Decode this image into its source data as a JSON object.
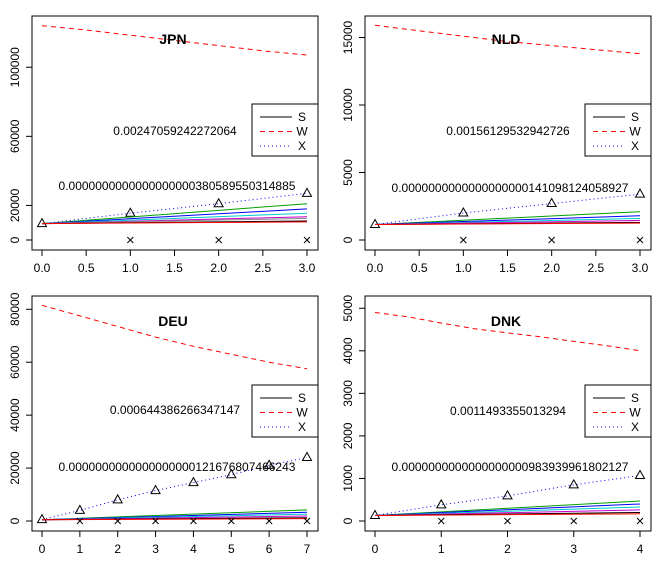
{
  "chart_data": [
    {
      "type": "line",
      "title": "JPN",
      "xlim": [
        0,
        3
      ],
      "ylim": [
        0,
        125000
      ],
      "x_ticks": [
        0,
        0.5,
        1,
        1.5,
        2,
        2.5,
        3
      ],
      "x_tick_labels": [
        "0.0",
        "0.5",
        "1.0",
        "1.5",
        "2.0",
        "2.5",
        "3.0"
      ],
      "y_ticks": [
        0,
        20000,
        60000,
        100000
      ],
      "y_tick_labels": [
        "0",
        "20000",
        "60000",
        "100000"
      ],
      "annotations": [
        "0.00247059242272064",
        "0.0000000000000000000380589550314885"
      ],
      "legend": {
        "placement": "right",
        "entries": [
          "S",
          "W",
          "X"
        ]
      },
      "series": [
        {
          "name": "W",
          "color": "#ff0000",
          "style": "dashed",
          "x": [
            0,
            0.5,
            1,
            1.5,
            2,
            2.5,
            3
          ],
          "values": [
            124000,
            121500,
            118500,
            115500,
            112500,
            109500,
            107000
          ]
        },
        {
          "name": "X",
          "color": "#0000ff",
          "style": "dotted",
          "marker": "triangle",
          "x": [
            0,
            1,
            2,
            3
          ],
          "values": [
            9500,
            15500,
            21000,
            27000
          ]
        },
        {
          "color": "#00a000",
          "style": "solid",
          "x": [
            0,
            3
          ],
          "values": [
            9500,
            21000
          ]
        },
        {
          "color": "#0000ff",
          "style": "solid",
          "x": [
            0,
            3
          ],
          "values": [
            9500,
            18000
          ]
        },
        {
          "color": "#00cccc",
          "style": "solid",
          "x": [
            0,
            3
          ],
          "values": [
            9500,
            15500
          ]
        },
        {
          "color": "#cc00cc",
          "style": "solid",
          "x": [
            0,
            3
          ],
          "values": [
            9500,
            13500
          ]
        },
        {
          "color": "#888888",
          "style": "solid",
          "x": [
            0,
            3
          ],
          "values": [
            9500,
            12500
          ]
        },
        {
          "color": "#000000",
          "style": "solid",
          "x": [
            0,
            3
          ],
          "values": [
            9500,
            11000
          ]
        },
        {
          "color": "#ff0000",
          "style": "solid",
          "x": [
            0,
            3
          ],
          "values": [
            9500,
            10500
          ]
        },
        {
          "marker": "cross",
          "x": [
            1,
            2,
            3
          ],
          "values": [
            0,
            0,
            0
          ]
        }
      ]
    },
    {
      "type": "line",
      "title": "NLD",
      "xlim": [
        0,
        3
      ],
      "ylim": [
        0,
        16000
      ],
      "x_ticks": [
        0,
        0.5,
        1,
        1.5,
        2,
        2.5,
        3
      ],
      "x_tick_labels": [
        "0.0",
        "0.5",
        "1.0",
        "1.5",
        "2.0",
        "2.5",
        "3.0"
      ],
      "y_ticks": [
        0,
        5000,
        10000,
        15000
      ],
      "y_tick_labels": [
        "0",
        "5000",
        "10000",
        "15000"
      ],
      "annotations": [
        "0.00156129532942726",
        "0.0000000000000000000141098124058927"
      ],
      "legend": {
        "placement": "right",
        "entries": [
          "S",
          "W",
          "X"
        ]
      },
      "series": [
        {
          "name": "W",
          "color": "#ff0000",
          "style": "dashed",
          "x": [
            0,
            0.5,
            1,
            1.5,
            2,
            2.5,
            3
          ],
          "values": [
            15900,
            15500,
            15100,
            14700,
            14400,
            14100,
            13800
          ]
        },
        {
          "name": "X",
          "color": "#0000ff",
          "style": "dotted",
          "marker": "triangle",
          "x": [
            0,
            1,
            2,
            3
          ],
          "values": [
            1150,
            2000,
            2700,
            3400
          ]
        },
        {
          "color": "#00a000",
          "style": "solid",
          "x": [
            0,
            3
          ],
          "values": [
            1150,
            2100
          ]
        },
        {
          "color": "#0000ff",
          "style": "solid",
          "x": [
            0,
            3
          ],
          "values": [
            1150,
            1800
          ]
        },
        {
          "color": "#00cccc",
          "style": "solid",
          "x": [
            0,
            3
          ],
          "values": [
            1150,
            1600
          ]
        },
        {
          "color": "#cc00cc",
          "style": "solid",
          "x": [
            0,
            3
          ],
          "values": [
            1150,
            1450
          ]
        },
        {
          "color": "#000000",
          "style": "solid",
          "x": [
            0,
            3
          ],
          "values": [
            1150,
            1300
          ]
        },
        {
          "color": "#ff0000",
          "style": "solid",
          "x": [
            0,
            3
          ],
          "values": [
            1150,
            1250
          ]
        },
        {
          "marker": "cross",
          "x": [
            1,
            2,
            3
          ],
          "values": [
            0,
            0,
            0
          ]
        }
      ]
    },
    {
      "type": "line",
      "title": "DEU",
      "xlim": [
        0,
        7
      ],
      "ylim": [
        0,
        82000
      ],
      "x_ticks": [
        0,
        1,
        2,
        3,
        4,
        5,
        6,
        7
      ],
      "x_tick_labels": [
        "0",
        "1",
        "2",
        "3",
        "4",
        "5",
        "6",
        "7"
      ],
      "y_ticks": [
        0,
        20000,
        40000,
        60000,
        80000
      ],
      "y_tick_labels": [
        "0",
        "20000",
        "40000",
        "60000",
        "80000"
      ],
      "annotations": [
        "0.000644386266347147",
        "0.0000000000000000000121676807466243"
      ],
      "legend": {
        "placement": "right",
        "entries": [
          "S",
          "W",
          "X"
        ]
      },
      "series": [
        {
          "name": "W",
          "color": "#ff0000",
          "style": "dashed",
          "x": [
            0,
            1,
            2,
            3,
            4,
            5,
            6,
            7
          ],
          "values": [
            81500,
            77500,
            73500,
            69500,
            66000,
            63000,
            60000,
            57500
          ]
        },
        {
          "name": "X",
          "color": "#0000ff",
          "style": "dotted",
          "marker": "triangle",
          "x": [
            0,
            1,
            2,
            3,
            4,
            5,
            6,
            7
          ],
          "values": [
            500,
            4000,
            8000,
            11500,
            14500,
            17500,
            21000,
            24000
          ]
        },
        {
          "color": "#00a000",
          "style": "solid",
          "x": [
            0,
            7
          ],
          "values": [
            500,
            4200
          ]
        },
        {
          "color": "#0000ff",
          "style": "solid",
          "x": [
            0,
            7
          ],
          "values": [
            500,
            3300
          ]
        },
        {
          "color": "#00cccc",
          "style": "solid",
          "x": [
            0,
            7
          ],
          "values": [
            500,
            2600
          ]
        },
        {
          "color": "#cc00cc",
          "style": "solid",
          "x": [
            0,
            7
          ],
          "values": [
            500,
            1900
          ]
        },
        {
          "color": "#000000",
          "style": "solid",
          "x": [
            0,
            7
          ],
          "values": [
            500,
            1200
          ]
        },
        {
          "color": "#ff0000",
          "style": "solid",
          "x": [
            0,
            7
          ],
          "values": [
            500,
            900
          ]
        },
        {
          "marker": "cross",
          "x": [
            1,
            2,
            3,
            4,
            5,
            6,
            7
          ],
          "values": [
            0,
            0,
            0,
            0,
            0,
            0,
            0
          ]
        }
      ]
    },
    {
      "type": "line",
      "title": "DNK",
      "xlim": [
        0,
        4
      ],
      "ylim": [
        0,
        5100
      ],
      "x_ticks": [
        0,
        1,
        2,
        3,
        4
      ],
      "x_tick_labels": [
        "0",
        "1",
        "2",
        "3",
        "4"
      ],
      "y_ticks": [
        0,
        1000,
        2000,
        3000,
        4000,
        5000
      ],
      "y_tick_labels": [
        "0",
        "1000",
        "2000",
        "3000",
        "4000",
        "5000"
      ],
      "annotations": [
        "0.0011493355013294",
        "0.0000000000000000000983939961802127"
      ],
      "legend": {
        "placement": "right",
        "entries": [
          "S",
          "W",
          "X"
        ]
      },
      "series": [
        {
          "name": "W",
          "color": "#ff0000",
          "style": "dashed",
          "x": [
            0,
            0.5,
            1,
            1.5,
            2,
            2.5,
            3,
            3.5,
            4
          ],
          "values": [
            4900,
            4800,
            4650,
            4520,
            4420,
            4330,
            4220,
            4120,
            4000
          ]
        },
        {
          "name": "X",
          "color": "#0000ff",
          "style": "dotted",
          "marker": "triangle",
          "x": [
            0,
            1,
            2,
            3,
            4
          ],
          "values": [
            130,
            380,
            590,
            850,
            1070
          ]
        },
        {
          "color": "#00a000",
          "style": "solid",
          "x": [
            0,
            4
          ],
          "values": [
            130,
            470
          ]
        },
        {
          "color": "#0000ff",
          "style": "solid",
          "x": [
            0,
            4
          ],
          "values": [
            130,
            400
          ]
        },
        {
          "color": "#00cccc",
          "style": "solid",
          "x": [
            0,
            4
          ],
          "values": [
            130,
            330
          ]
        },
        {
          "color": "#cc00cc",
          "style": "solid",
          "x": [
            0,
            4
          ],
          "values": [
            130,
            260
          ]
        },
        {
          "color": "#000000",
          "style": "solid",
          "x": [
            0,
            4
          ],
          "values": [
            130,
            200
          ]
        },
        {
          "color": "#ff0000",
          "style": "solid",
          "x": [
            0,
            4
          ],
          "values": [
            130,
            170
          ]
        },
        {
          "marker": "cross",
          "x": [
            1,
            2,
            3,
            4
          ],
          "values": [
            0,
            0,
            0,
            0
          ]
        }
      ]
    }
  ]
}
